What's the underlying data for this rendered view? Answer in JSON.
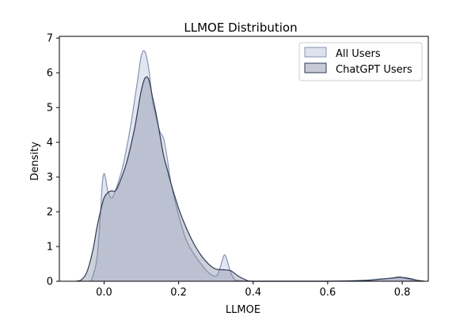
{
  "chart_data": {
    "type": "area",
    "title": "LLMOE Distribution",
    "xlabel": "LLMOE",
    "ylabel": "Density",
    "xlim": [
      -0.12,
      0.87
    ],
    "ylim": [
      0,
      7.05
    ],
    "xticks": [
      0.0,
      0.2,
      0.4,
      0.6,
      0.8
    ],
    "xtick_labels": [
      "0.0",
      "0.2",
      "0.4",
      "0.6",
      "0.8"
    ],
    "yticks": [
      0,
      1,
      2,
      3,
      4,
      5,
      6,
      7
    ],
    "ytick_labels": [
      "0",
      "1",
      "2",
      "3",
      "4",
      "5",
      "6",
      "7"
    ],
    "grid": false,
    "legend_position": "top-right",
    "series": [
      {
        "name": "All Users",
        "fill_color": "#9aa6c8",
        "fill_opacity": 0.28,
        "line_color": "#8593b4",
        "x": [
          -0.035,
          -0.02,
          -0.01,
          -0.005,
          0.0,
          0.005,
          0.01,
          0.02,
          0.03,
          0.05,
          0.07,
          0.09,
          0.1,
          0.11,
          0.12,
          0.13,
          0.14,
          0.15,
          0.16,
          0.17,
          0.18,
          0.2,
          0.22,
          0.24,
          0.26,
          0.28,
          0.3,
          0.31,
          0.32,
          0.325,
          0.33,
          0.34,
          0.35,
          0.36,
          0.37,
          0.4,
          0.5,
          0.6,
          0.7,
          0.74,
          0.77,
          0.8,
          0.82,
          0.84
        ],
        "y": [
          0.0,
          0.6,
          1.9,
          2.8,
          3.1,
          2.9,
          2.6,
          2.4,
          2.6,
          3.3,
          4.4,
          5.8,
          6.5,
          6.6,
          6.1,
          5.2,
          4.7,
          4.3,
          4.1,
          3.5,
          2.8,
          1.9,
          1.2,
          0.8,
          0.5,
          0.25,
          0.15,
          0.35,
          0.7,
          0.75,
          0.6,
          0.25,
          0.05,
          0.02,
          0.01,
          0.0,
          0.0,
          0.0,
          0.03,
          0.06,
          0.08,
          0.1,
          0.05,
          0.0
        ]
      },
      {
        "name": "ChatGPT Users",
        "fill_color": "#7f879f",
        "fill_opacity": 0.38,
        "line_color": "#2d3a55",
        "x": [
          -0.075,
          -0.06,
          -0.045,
          -0.03,
          -0.02,
          -0.01,
          0.0,
          0.01,
          0.02,
          0.03,
          0.04,
          0.06,
          0.08,
          0.09,
          0.1,
          0.11,
          0.12,
          0.13,
          0.14,
          0.15,
          0.16,
          0.17,
          0.18,
          0.2,
          0.22,
          0.24,
          0.26,
          0.28,
          0.3,
          0.32,
          0.34,
          0.36,
          0.38,
          0.4,
          0.5,
          0.6,
          0.7,
          0.74,
          0.77,
          0.79,
          0.8,
          0.82,
          0.84,
          0.86
        ],
        "y": [
          0.0,
          0.05,
          0.3,
          0.9,
          1.5,
          2.0,
          2.4,
          2.55,
          2.6,
          2.6,
          2.8,
          3.4,
          4.3,
          4.9,
          5.5,
          5.85,
          5.8,
          5.3,
          4.8,
          4.2,
          3.6,
          3.2,
          2.8,
          2.1,
          1.55,
          1.1,
          0.75,
          0.5,
          0.35,
          0.33,
          0.3,
          0.15,
          0.04,
          0.0,
          0.0,
          0.0,
          0.02,
          0.06,
          0.09,
          0.12,
          0.11,
          0.08,
          0.03,
          0.0
        ]
      }
    ]
  }
}
